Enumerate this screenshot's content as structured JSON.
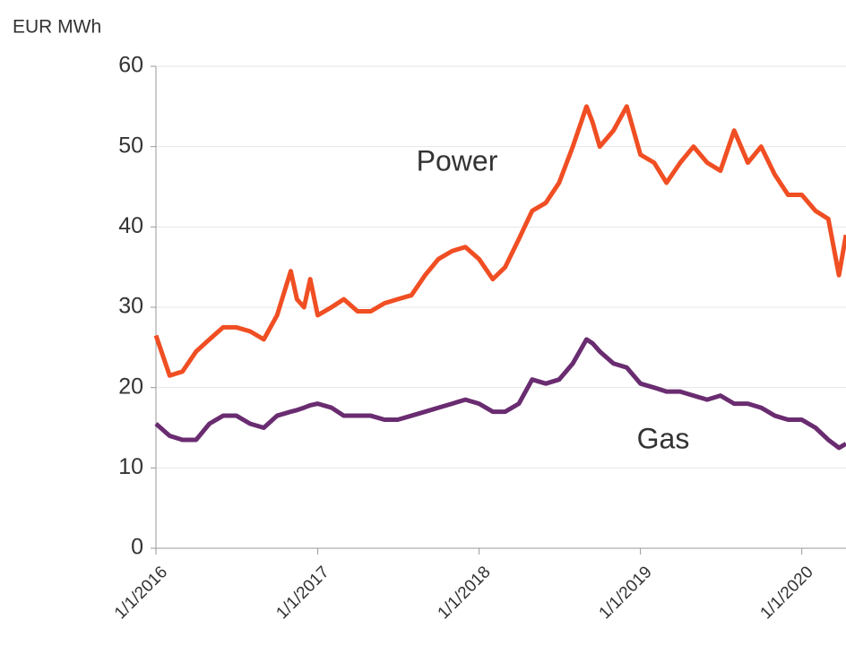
{
  "chart_data": {
    "type": "line",
    "y_label": "EUR MWh",
    "annotations": [
      "Power",
      "Gas"
    ],
    "x": [
      "2016-01-01",
      "2016-02-01",
      "2016-03-01",
      "2016-04-01",
      "2016-05-01",
      "2016-06-01",
      "2016-07-01",
      "2016-08-01",
      "2016-09-01",
      "2016-10-01",
      "2016-11-01",
      "2016-11-15",
      "2016-12-01",
      "2016-12-15",
      "2017-01-01",
      "2017-02-01",
      "2017-03-01",
      "2017-04-01",
      "2017-05-01",
      "2017-06-01",
      "2017-07-01",
      "2017-08-01",
      "2017-09-01",
      "2017-10-01",
      "2017-11-01",
      "2017-12-01",
      "2018-01-01",
      "2018-02-01",
      "2018-03-01",
      "2018-04-01",
      "2018-05-01",
      "2018-06-01",
      "2018-07-01",
      "2018-08-01",
      "2018-09-01",
      "2018-09-15",
      "2018-10-01",
      "2018-11-01",
      "2018-12-01",
      "2019-01-01",
      "2019-02-01",
      "2019-03-01",
      "2019-04-01",
      "2019-05-01",
      "2019-06-01",
      "2019-07-01",
      "2019-08-01",
      "2019-09-01",
      "2019-10-01",
      "2019-11-01",
      "2019-12-01",
      "2020-01-01",
      "2020-02-01",
      "2020-03-01",
      "2020-03-25",
      "2020-04-10"
    ],
    "series": [
      {
        "name": "Power",
        "color": "#f04e23",
        "values": [
          26.5,
          21.5,
          22,
          24.5,
          26,
          27.5,
          27.5,
          27,
          26,
          29,
          34.5,
          31,
          30,
          33.5,
          29,
          30,
          31,
          29.5,
          29.5,
          30.5,
          31,
          31.5,
          34,
          36,
          37,
          37.5,
          36,
          33.5,
          35,
          38.5,
          42,
          43,
          45.5,
          50,
          55,
          53,
          50,
          52,
          55,
          49,
          48,
          45.5,
          48,
          50,
          48,
          47,
          52,
          48,
          50,
          46.5,
          44,
          44,
          42,
          41,
          34,
          39
        ]
      },
      {
        "name": "Gas",
        "color": "#6a2c70",
        "values": [
          15.5,
          14,
          13.5,
          13.5,
          15.5,
          16.5,
          16.5,
          15.5,
          15,
          16.5,
          17,
          17.2,
          17.5,
          17.8,
          18,
          17.5,
          16.5,
          16.5,
          16.5,
          16,
          16,
          16.5,
          17,
          17.5,
          18,
          18.5,
          18,
          17,
          17,
          18,
          21,
          20.5,
          21,
          23,
          26,
          25.5,
          24.5,
          23,
          22.5,
          20.5,
          20,
          19.5,
          19.5,
          19,
          18.5,
          19,
          18,
          18,
          17.5,
          16.5,
          16,
          16,
          15,
          13.5,
          12.5,
          13
        ]
      }
    ],
    "xlim": [
      "2016-01-01",
      "2020-04-10"
    ],
    "xticks": [
      {
        "value": "2016-01-01",
        "label": "1/1/2016"
      },
      {
        "value": "2017-01-01",
        "label": "1/1/2017"
      },
      {
        "value": "2018-01-01",
        "label": "1/1/2018"
      },
      {
        "value": "2019-01-01",
        "label": "1/1/2019"
      },
      {
        "value": "2020-01-01",
        "label": "1/1/2020"
      }
    ],
    "ylim": [
      0,
      60
    ],
    "yticks": [
      0,
      10,
      20,
      30,
      40,
      50,
      60
    ],
    "grid": true
  }
}
